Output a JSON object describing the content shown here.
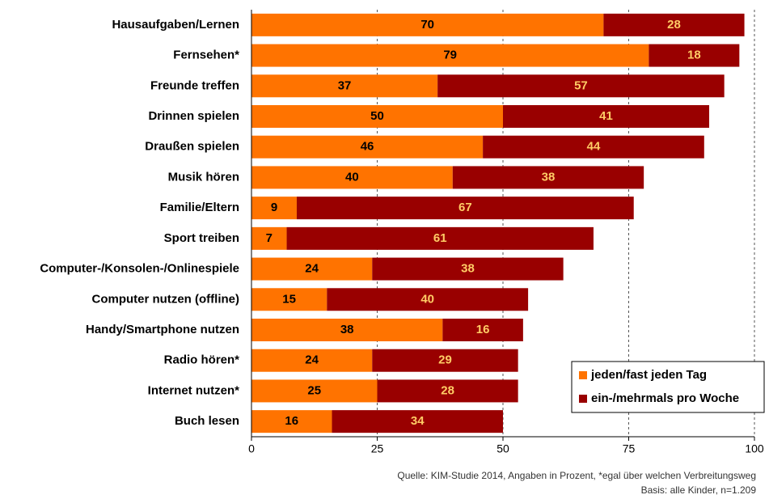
{
  "chart_data": {
    "type": "stacked_barh",
    "categories": [
      "Hausaufgaben/Lernen",
      "Fernsehen*",
      "Freunde treffen",
      "Drinnen spielen",
      "Draußen spielen",
      "Musik hören",
      "Familie/Eltern",
      "Sport treiben",
      "Computer-/Konsolen-/Onlinespiele",
      "Computer nutzen (offline)",
      "Handy/Smartphone nutzen",
      "Radio hören*",
      "Internet nutzen*",
      "Buch lesen"
    ],
    "series": [
      {
        "name": "jeden/fast jeden Tag",
        "color": "#ff7300",
        "label_color": "#000000",
        "values": [
          70,
          79,
          37,
          50,
          46,
          40,
          9,
          7,
          24,
          15,
          38,
          24,
          25,
          16
        ]
      },
      {
        "name": "ein-/mehrmals pro Woche",
        "color": "#990000",
        "label_color": "#ffcc66",
        "values": [
          28,
          18,
          57,
          41,
          44,
          38,
          67,
          61,
          38,
          40,
          16,
          29,
          28,
          34
        ]
      }
    ],
    "xlim": [
      0,
      100
    ],
    "xticks": [
      0,
      25,
      50,
      75,
      100
    ],
    "grid": true,
    "legend": "lower right",
    "source": [
      "Quelle: KIM-Studie 2014, Angaben in Prozent, *egal über welchen Verbreitungsweg",
      "Basis: alle Kinder, n=1.209"
    ]
  }
}
